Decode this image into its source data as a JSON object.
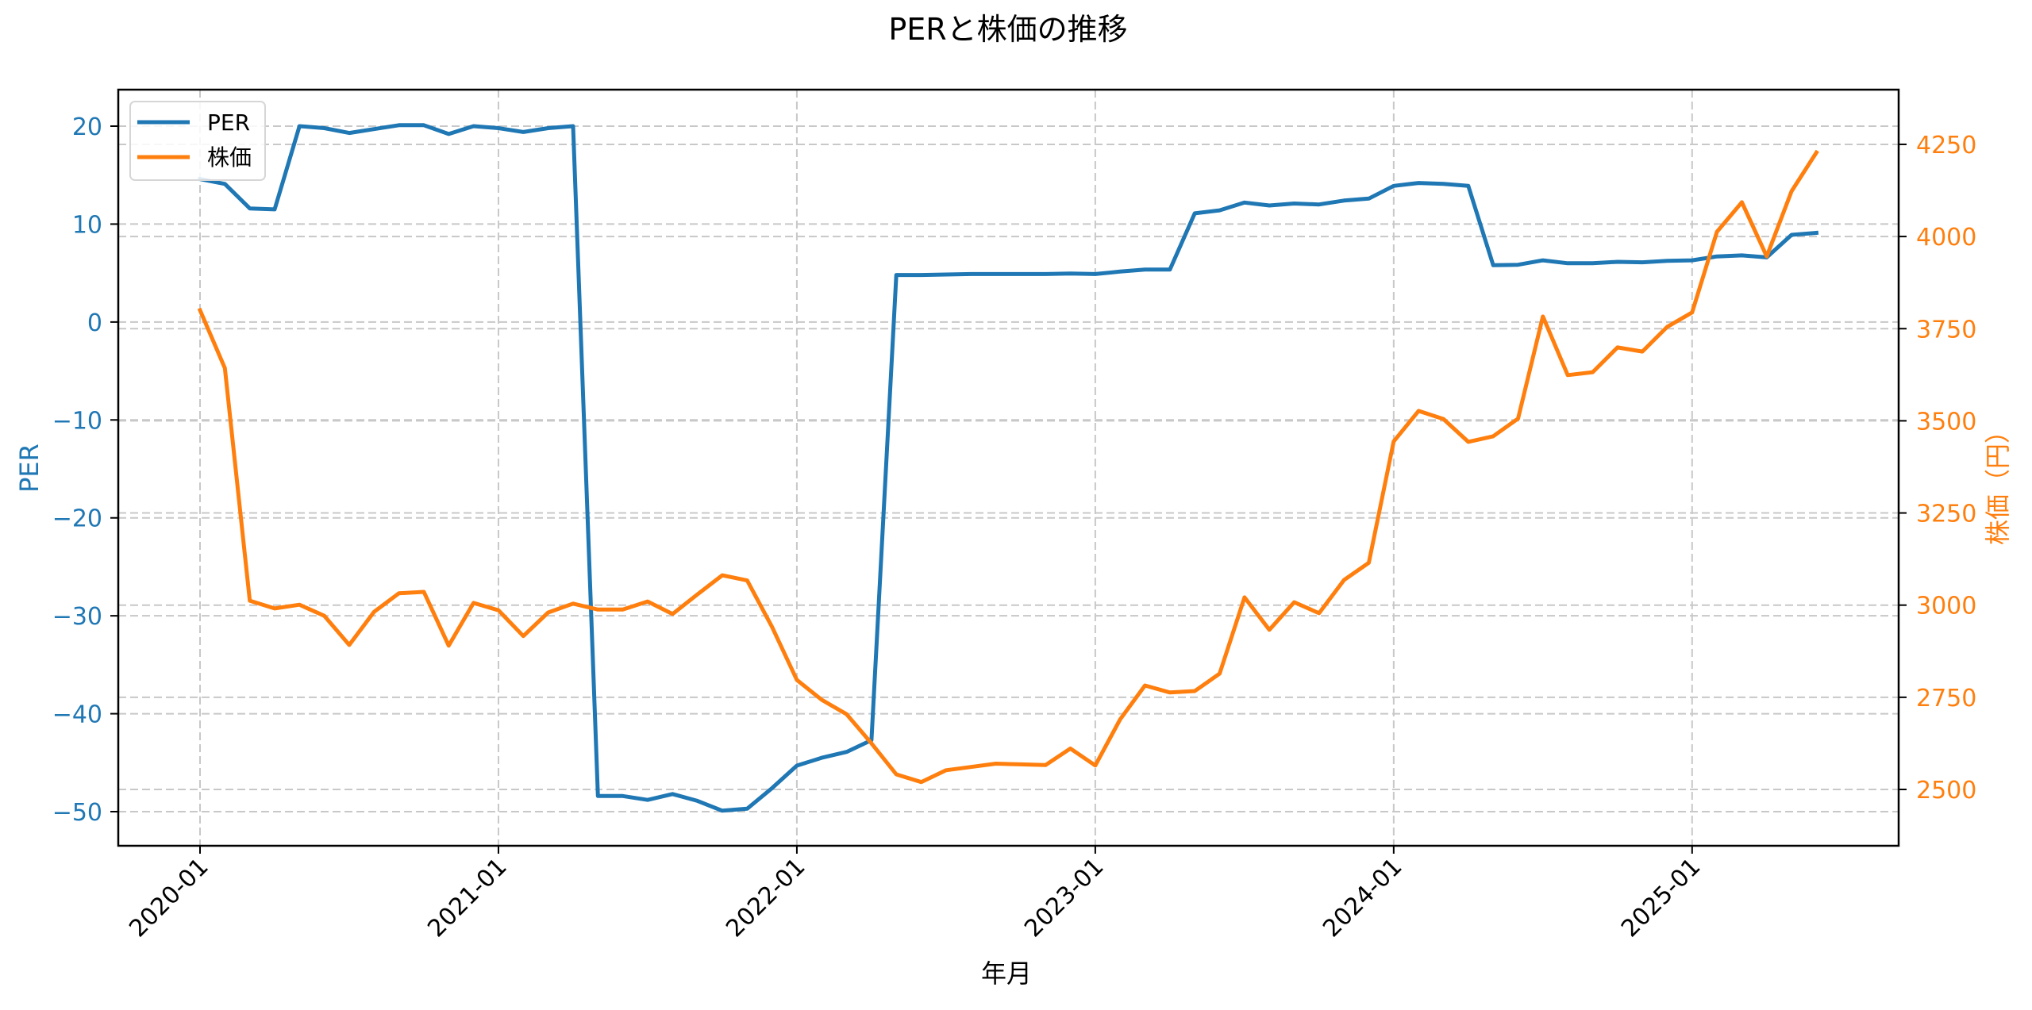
{
  "chart_data": {
    "type": "line",
    "title": "PERと株価の推移",
    "xlabel": "年月",
    "ylabel": "PER",
    "ylabel_right": "株価（円）",
    "x_ticks": [
      "2020-01",
      "2021-01",
      "2022-01",
      "2023-01",
      "2024-01",
      "2025-01"
    ],
    "y_ticks_left": [
      20,
      10,
      0,
      -10,
      -20,
      -30,
      -40,
      -50
    ],
    "y_ticks_right": [
      4250,
      4000,
      3750,
      3500,
      3250,
      3000,
      2750,
      2500
    ],
    "ylim_left": [
      -53.5,
      23.8
    ],
    "ylim_right": [
      2356,
      4384
    ],
    "grid": true,
    "legend_position": "upper left",
    "x": [
      "2020-01",
      "2020-02",
      "2020-03",
      "2020-04",
      "2020-05",
      "2020-06",
      "2020-07",
      "2020-08",
      "2020-09",
      "2020-10",
      "2020-11",
      "2020-12",
      "2021-01",
      "2021-02",
      "2021-03",
      "2021-04",
      "2021-05",
      "2021-06",
      "2021-07",
      "2021-08",
      "2021-09",
      "2021-10",
      "2021-11",
      "2021-12",
      "2022-01",
      "2022-02",
      "2022-03",
      "2022-04",
      "2022-05",
      "2022-06",
      "2022-07",
      "2022-08",
      "2022-09",
      "2022-10",
      "2022-11",
      "2022-12",
      "2023-01",
      "2023-02",
      "2023-03",
      "2023-04",
      "2023-05",
      "2023-06",
      "2023-07",
      "2023-08",
      "2023-09",
      "2023-10",
      "2023-11",
      "2023-12",
      "2024-01",
      "2024-02",
      "2024-03",
      "2024-04",
      "2024-05",
      "2024-06",
      "2024-07",
      "2024-08",
      "2024-09",
      "2024-10",
      "2024-11",
      "2024-12",
      "2025-01",
      "2025-02",
      "2025-03",
      "2025-04",
      "2025-05",
      "2025-06"
    ],
    "series": [
      {
        "name": "PER",
        "axis": "left",
        "color": "#1f77b4",
        "values": [
          14.6,
          14.1,
          11.6,
          11.5,
          20.0,
          19.8,
          19.3,
          19.7,
          20.1,
          20.1,
          19.2,
          20.0,
          19.8,
          19.4,
          19.8,
          20.0,
          -48.4,
          -48.4,
          -48.8,
          -48.2,
          -48.9,
          -49.9,
          -49.7,
          -47.6,
          -45.3,
          -44.5,
          -43.9,
          -42.7,
          4.8,
          4.8,
          4.85,
          4.9,
          4.9,
          4.9,
          4.9,
          4.95,
          4.9,
          5.15,
          5.35,
          5.35,
          11.1,
          11.4,
          12.2,
          11.9,
          12.1,
          12.0,
          12.4,
          12.6,
          13.9,
          14.2,
          14.1,
          13.9,
          5.8,
          5.85,
          6.3,
          6.0,
          6.0,
          6.15,
          6.1,
          6.25,
          6.3,
          6.7,
          6.8,
          6.6,
          8.9,
          9.1
        ]
      },
      {
        "name": "株価",
        "axis": "right",
        "color": "#ff7f0e",
        "values": [
          3800,
          3643,
          3012,
          2991,
          3001,
          2971,
          2892,
          2982,
          3032,
          3036,
          2890,
          3006,
          2986,
          2916,
          2980,
          3004,
          2988,
          2988,
          3010,
          2976,
          3029,
          3081,
          3067,
          2941,
          2797,
          2743,
          2704,
          2625,
          2541,
          2520,
          2552,
          2561,
          2570,
          2568,
          2566,
          2611,
          2565,
          2690,
          2782,
          2763,
          2767,
          2814,
          3021,
          2933,
          3008,
          2978,
          3068,
          3115,
          3444,
          3527,
          3505,
          3443,
          3458,
          3506,
          3783,
          3624,
          3632,
          3699,
          3688,
          3755,
          3794,
          4013,
          4093,
          3946,
          4123,
          4228
        ]
      }
    ]
  }
}
